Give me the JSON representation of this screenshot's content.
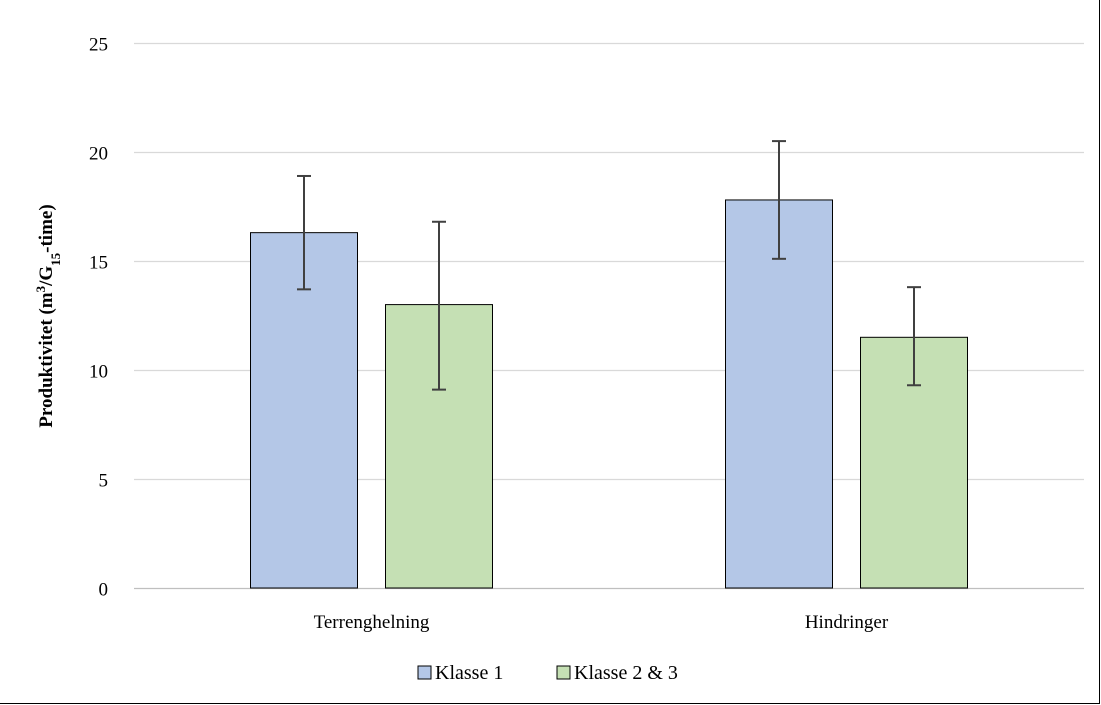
{
  "chart_data": {
    "type": "bar",
    "categories": [
      "Terrenghelning",
      "Hindringer"
    ],
    "series": [
      {
        "name": "Klasse 1",
        "values": [
          16.3,
          17.8
        ],
        "error_low": [
          13.7,
          15.1
        ],
        "error_high": [
          18.9,
          20.5
        ],
        "color": "#b4c7e7"
      },
      {
        "name": "Klasse 2 & 3",
        "values": [
          13.0,
          11.5
        ],
        "error_low": [
          9.1,
          9.3
        ],
        "error_high": [
          16.8,
          13.8
        ],
        "color": "#c5e0b4"
      }
    ],
    "ylabel": {
      "prefix": "Produktivitet (m",
      "sup": "3",
      "mid": "/G",
      "sub": "15",
      "suffix": "-time)"
    },
    "ylim": [
      0,
      25
    ],
    "yticks": [
      "0",
      "5",
      "10",
      "15",
      "20",
      "25"
    ],
    "grid": true,
    "legend_position": "bottom",
    "colors": {
      "grid": "#d9d9d9",
      "axis": "#bfbfbf",
      "bar_stroke": "#000000",
      "error_bar": "#404040"
    }
  }
}
